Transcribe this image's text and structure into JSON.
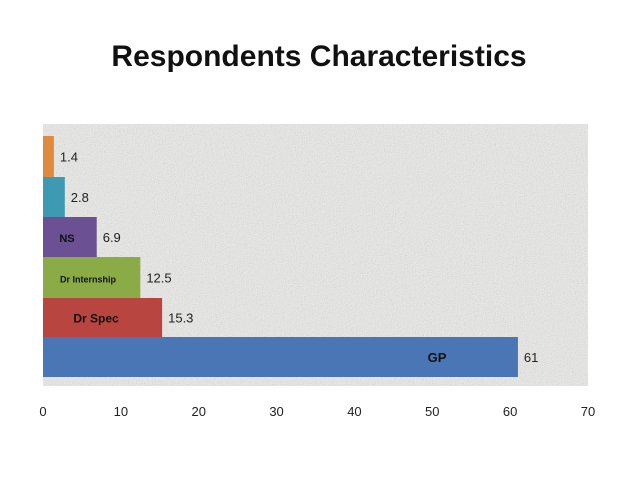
{
  "slide": {
    "title": "Respondents Characteristics"
  },
  "chart_data": {
    "type": "bar",
    "orientation": "horizontal",
    "title": "Respondents Characteristics",
    "xlabel": "",
    "ylabel": "",
    "xlim": [
      0,
      70
    ],
    "xticks": [
      0,
      10,
      20,
      30,
      40,
      50,
      60,
      70
    ],
    "grid": false,
    "legend": "none",
    "categories": [
      "GP",
      "Dr Spec",
      "Dr Internship",
      "NS",
      "",
      ""
    ],
    "values": [
      61,
      15.3,
      12.5,
      6.9,
      2.8,
      1.4
    ],
    "colors": [
      "#4a76b6",
      "#b8453f",
      "#8bab47",
      "#6b5094",
      "#3d9ab2",
      "#e08a3f"
    ]
  }
}
